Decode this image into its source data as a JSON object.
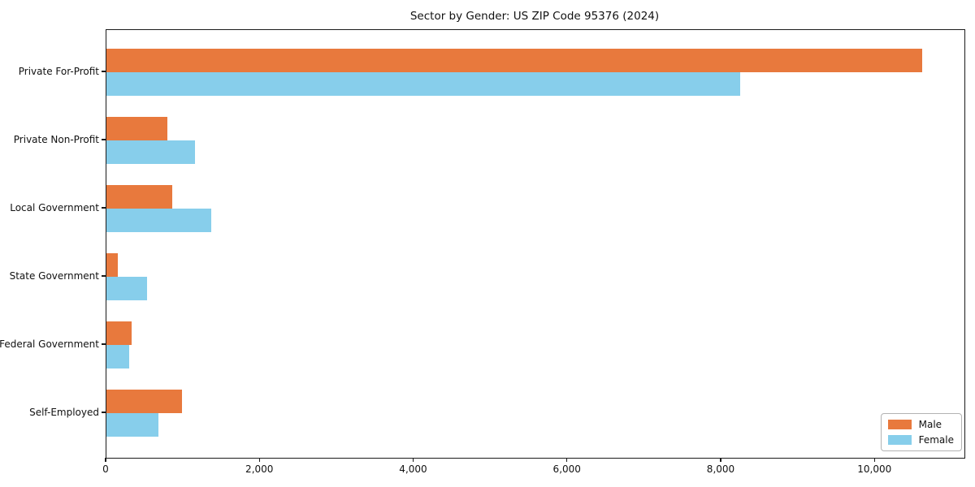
{
  "title": "Sector by Gender: US ZIP Code 95376 (2024)",
  "colors": {
    "male": "#e8793d",
    "female": "#87ceeb",
    "spine": "#1a1a1a",
    "legend_border": "#b3b3b3",
    "text": "#111111",
    "background": "#ffffff"
  },
  "chart_data": {
    "type": "bar",
    "orientation": "horizontal",
    "title": "Sector by Gender: US ZIP Code 95376 (2024)",
    "categories": [
      "Private For-Profit",
      "Private Non-Profit",
      "Local Government",
      "State Government",
      "Federal Government",
      "Self-Employed"
    ],
    "series": [
      {
        "name": "Male",
        "color": "#e8793d",
        "values": [
          10615,
          795,
          855,
          150,
          330,
          985
        ]
      },
      {
        "name": "Female",
        "color": "#87ceeb",
        "values": [
          8245,
          1150,
          1365,
          530,
          295,
          675
        ]
      }
    ],
    "xlabel": "",
    "ylabel": "",
    "xlim": [
      0,
      11160
    ],
    "xticks": [
      0,
      2000,
      4000,
      6000,
      8000,
      10000
    ],
    "xtick_labels": [
      "0",
      "2,000",
      "4,000",
      "6,000",
      "8,000",
      "10,000"
    ],
    "grid": false,
    "legend_position": "lower right"
  }
}
